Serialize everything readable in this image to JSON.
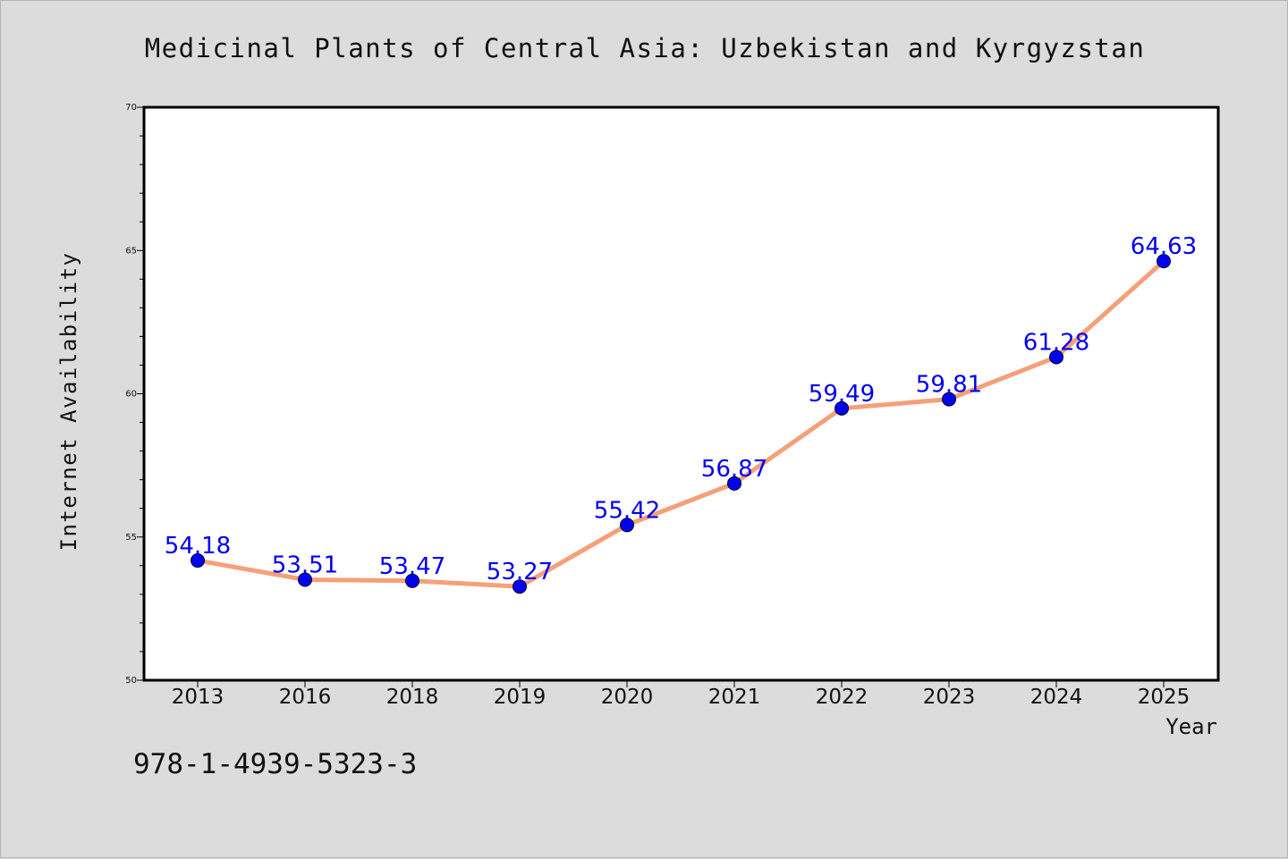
{
  "chart_data": {
    "type": "line",
    "title": "Medicinal Plants of Central Asia: Uzbekistan and Kyrgyzstan",
    "xlabel": "Year",
    "ylabel": "Internet Availability",
    "categories": [
      "2013",
      "2016",
      "2018",
      "2019",
      "2020",
      "2021",
      "2022",
      "2023",
      "2024",
      "2025"
    ],
    "series": [
      {
        "values": [
          54.18,
          53.51,
          53.47,
          53.27,
          55.42,
          56.87,
          59.49,
          59.81,
          61.28,
          64.63
        ],
        "data_labels": [
          "54.18",
          "53.51",
          "53.47",
          "53.27",
          "55.42",
          "56.87",
          "59.49",
          "59.81",
          "61.28",
          "64.63"
        ]
      }
    ],
    "ylim": [
      50,
      70
    ],
    "y_ticks": [
      50,
      55,
      60,
      65,
      70
    ],
    "y_tick_labels": [
      "50",
      "55",
      "60",
      "65",
      "70"
    ],
    "grid": false,
    "legend": "none",
    "colors": {
      "line": "#f4a07a",
      "marker": "#0000ee",
      "data_label": "#0000ee",
      "plot_background": "#ffffff",
      "page_background": "#dcdcdc"
    }
  },
  "footer": {
    "isbn": "978-1-4939-5323-3"
  }
}
